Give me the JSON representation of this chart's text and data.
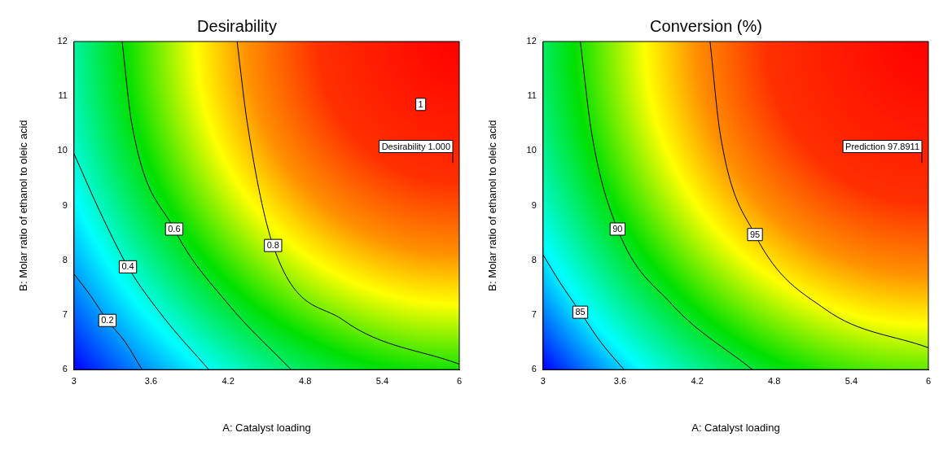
{
  "chart_data": [
    {
      "type": "line",
      "title": "Desirability",
      "xlabel": "A: Catalyst loading",
      "ylabel": "B: Molar ratio of ethanol to oleic acid",
      "xlim": [
        3,
        6
      ],
      "ylim": [
        6,
        12
      ],
      "xticks": [
        3,
        3.6,
        4.2,
        4.8,
        5.4,
        6
      ],
      "yticks": [
        6,
        7,
        8,
        9,
        10,
        11,
        12
      ],
      "grid": false,
      "legend": false,
      "marker": "none",
      "line_style": "solid",
      "series": [
        {
          "name": "0.2",
          "color": "#000000",
          "x": [
            3,
            3.13,
            3.26,
            3.4,
            3.53
          ],
          "values": [
            7.75,
            7.35,
            6.9,
            6.5,
            6
          ]
        },
        {
          "name": "0.4",
          "color": "#000000",
          "x": [
            3,
            3.2,
            3.42,
            3.7,
            4.05
          ],
          "values": [
            9.95,
            8.9,
            7.88,
            6.95,
            6
          ]
        },
        {
          "name": "0.6",
          "color": "#000000",
          "x": [
            3.375,
            3.45,
            3.78,
            4.2,
            4.69
          ],
          "values": [
            12,
            10.5,
            8.57,
            7.2,
            6
          ]
        },
        {
          "name": "0.8",
          "color": "#000000",
          "x": [
            4.27,
            4.35,
            4.55,
            5.1,
            6
          ],
          "values": [
            12,
            10.5,
            8.27,
            6.9,
            6.1
          ]
        }
      ],
      "annotations": [
        {
          "text": "1",
          "x": 5.7,
          "y": 10.85
        },
        "Desirability 1.000"
      ]
    },
    {
      "type": "line",
      "title": "Conversion (%)",
      "xlabel": "A: Catalyst loading",
      "ylabel": "B: Molar ratio of ethanol to oleic acid",
      "xlim": [
        3,
        6
      ],
      "ylim": [
        6,
        12
      ],
      "xticks": [
        3,
        3.6,
        4.2,
        4.8,
        5.4,
        6
      ],
      "yticks": [
        6,
        7,
        8,
        9,
        10,
        11,
        12
      ],
      "grid": false,
      "legend": false,
      "marker": "none",
      "line_style": "solid",
      "series": [
        {
          "name": "85",
          "color": "#000000",
          "x": [
            3,
            3.13,
            3.29,
            3.45,
            3.63
          ],
          "values": [
            8.1,
            7.6,
            7.05,
            6.5,
            6
          ]
        },
        {
          "name": "90",
          "color": "#000000",
          "x": [
            3.29,
            3.38,
            3.58,
            4.0,
            4.63
          ],
          "values": [
            12,
            10.3,
            8.57,
            7.2,
            6
          ]
        },
        {
          "name": "95",
          "color": "#000000",
          "x": [
            4.3,
            4.38,
            4.65,
            5.2,
            6
          ],
          "values": [
            12,
            10.3,
            8.47,
            7.1,
            6.4
          ]
        }
      ],
      "annotations": [
        "Prediction 97.8911"
      ]
    }
  ]
}
